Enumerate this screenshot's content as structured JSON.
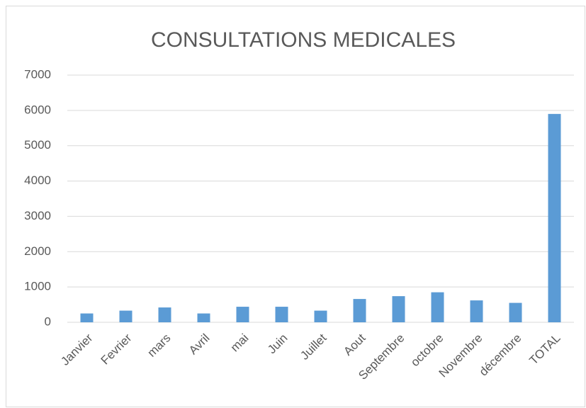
{
  "chart_data": {
    "type": "bar",
    "title": "CONSULTATIONS  MEDICALES",
    "categories": [
      "Janvier",
      "Fevrier",
      "mars",
      "Avril",
      "mai",
      "Juin",
      "Juillet",
      "Aout",
      "Septembre",
      "octobre",
      "Novembre",
      "décembre",
      "TOTAL"
    ],
    "values": [
      250,
      330,
      420,
      250,
      440,
      440,
      330,
      660,
      740,
      850,
      620,
      550,
      5900
    ],
    "color": "#5b9bd5",
    "ylim": [
      0,
      7000
    ],
    "yticks": [
      0,
      1000,
      2000,
      3000,
      4000,
      5000,
      6000,
      7000
    ],
    "grid": true
  }
}
